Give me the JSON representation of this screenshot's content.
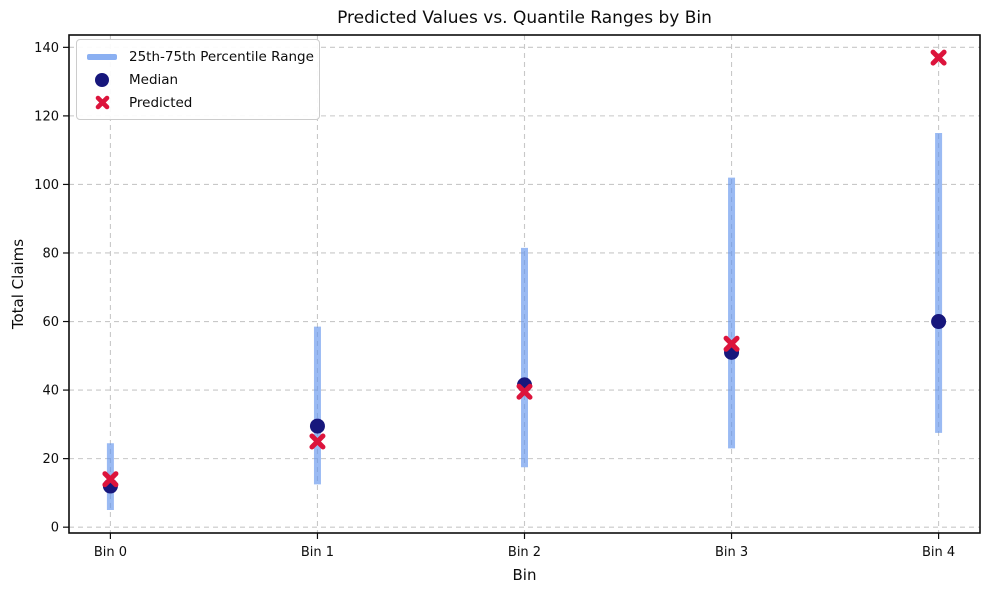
{
  "chart_data": {
    "type": "scatter",
    "title": "Predicted Values vs. Quantile Ranges by Bin",
    "xlabel": "Bin",
    "ylabel": "Total Claims",
    "categories": [
      "Bin 0",
      "Bin 1",
      "Bin 2",
      "Bin 3",
      "Bin 4"
    ],
    "yticks": [
      0,
      20,
      40,
      60,
      80,
      100,
      120,
      140
    ],
    "ylim": [
      -1.7,
      143.6
    ],
    "xlim": [
      -0.2,
      4.2
    ],
    "grid": true,
    "grid_style": "dashed",
    "legend_position": "upper left",
    "colors": {
      "range": "#6495ed",
      "range_opacity": 0.65,
      "median": "#17177c",
      "predicted": "#dc143c",
      "grid": "#c8c8c8",
      "frame": "#0d0d0d"
    },
    "series": [
      {
        "name": "25th-75th Percentile Range",
        "type": "range",
        "q25": [
          5,
          12.5,
          17.5,
          23,
          27.5
        ],
        "q75": [
          24.5,
          58.5,
          81.5,
          102,
          115
        ]
      },
      {
        "name": "Median",
        "type": "scatter-circle",
        "values": [
          12,
          29.5,
          41.5,
          51,
          60
        ]
      },
      {
        "name": "Predicted",
        "type": "scatter-x",
        "values": [
          14,
          25,
          39.5,
          53.5,
          137
        ]
      }
    ]
  }
}
